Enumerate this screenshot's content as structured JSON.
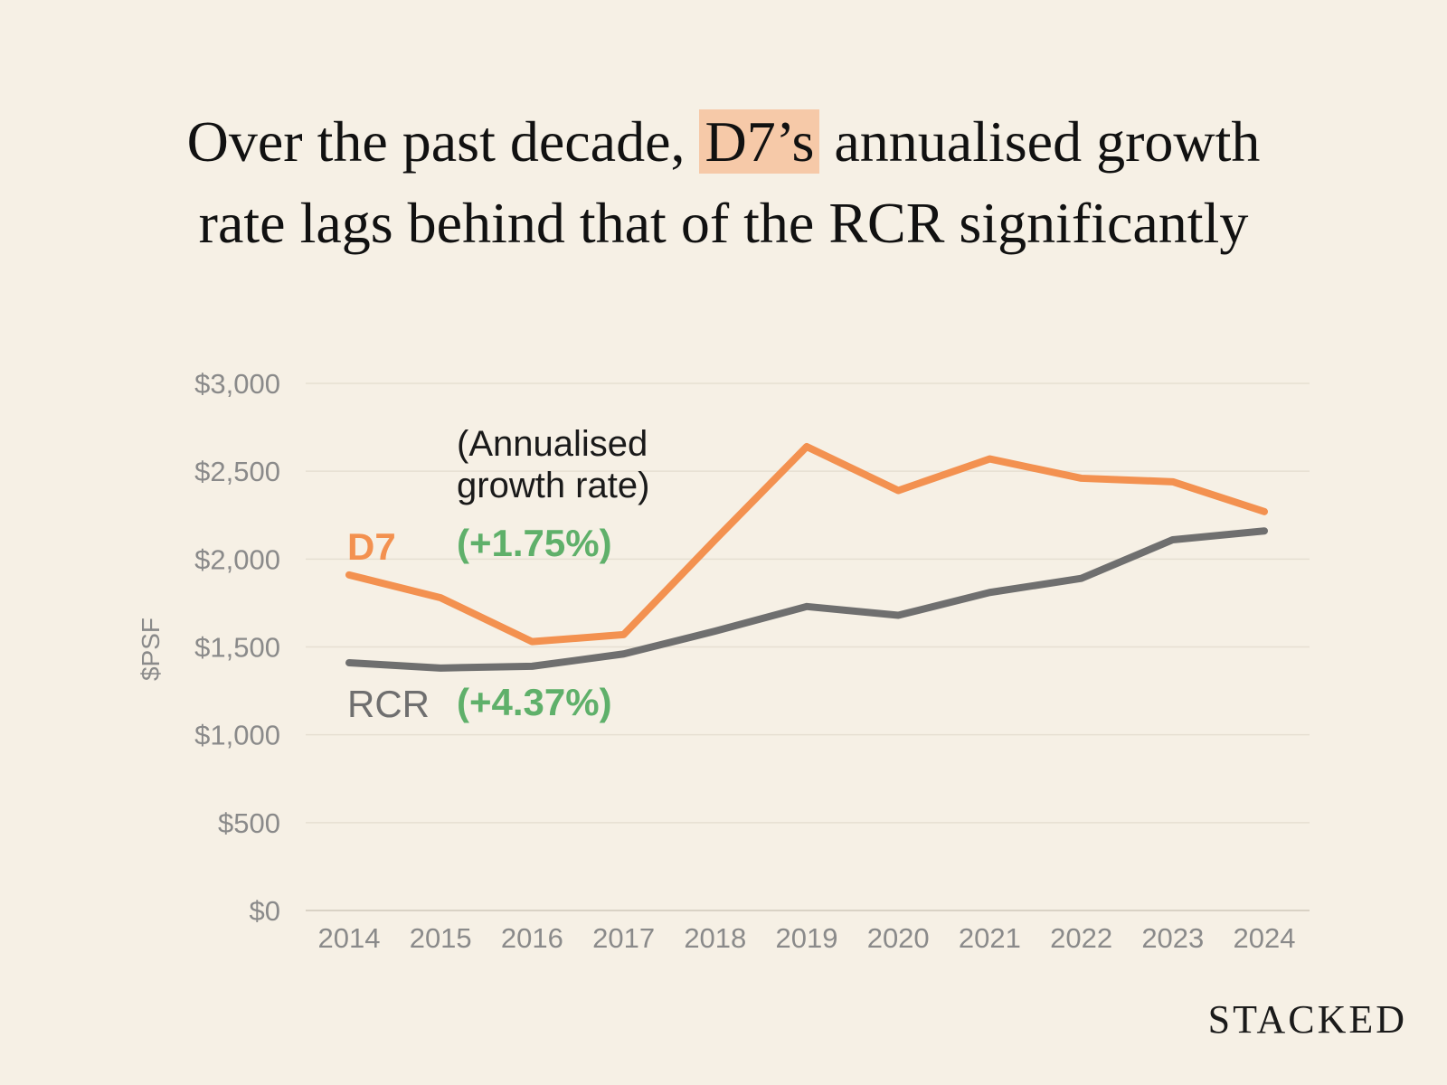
{
  "title": {
    "line1_before": "Over the past decade,",
    "line1_highlight": "D7’s",
    "line1_after": "annualised growth",
    "line2": "rate lags behind that of the RCR significantly"
  },
  "brand": "STACKED",
  "chart_data": {
    "type": "line",
    "title": "Over the past decade, D7’s annualised growth rate lags behind that of the RCR significantly",
    "xlabel": "",
    "ylabel": "$PSF",
    "ylim": [
      0,
      3000
    ],
    "y_ticks": [
      0,
      500,
      1000,
      1500,
      2000,
      2500,
      3000
    ],
    "y_tick_labels": [
      "$0",
      "$500",
      "$1,000",
      "$1,500",
      "$2,000",
      "$2,500",
      "$3,000"
    ],
    "categories": [
      "2014",
      "2015",
      "2016",
      "2017",
      "2018",
      "2019",
      "2020",
      "2021",
      "2022",
      "2023",
      "2024"
    ],
    "grid": true,
    "series": [
      {
        "name": "D7",
        "color": "#f39150",
        "values": [
          1910,
          1780,
          1530,
          1570,
          2110,
          2640,
          2390,
          2570,
          2460,
          2440,
          2270
        ],
        "growth_label": "(+1.75%)"
      },
      {
        "name": "RCR",
        "color": "#6f6f6f",
        "values": [
          1410,
          1380,
          1390,
          1460,
          1590,
          1730,
          1680,
          1810,
          1890,
          2110,
          2160
        ],
        "growth_label": "(+4.37%)"
      }
    ],
    "annotations": {
      "header_line1": "(Annualised",
      "header_line2": "growth rate)",
      "growth_color": "#5fb06a"
    }
  }
}
